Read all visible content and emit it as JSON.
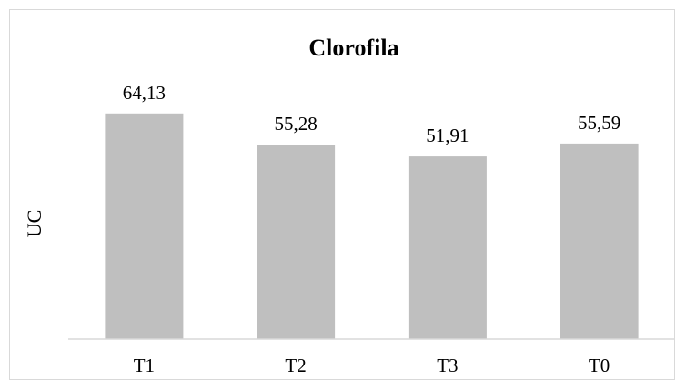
{
  "chart_data": {
    "type": "bar",
    "title": "Clorofila",
    "xlabel": "",
    "ylabel": "UC",
    "categories": [
      "T1",
      "T2",
      "T3",
      "T0"
    ],
    "values": [
      64.13,
      55.28,
      51.91,
      55.59
    ],
    "data_labels": [
      "64,13",
      "55,28",
      "51,91",
      "55,59"
    ],
    "ylim": [
      0,
      70
    ],
    "grid": false,
    "legend": "none",
    "bar_color": "#bfbfbf"
  }
}
